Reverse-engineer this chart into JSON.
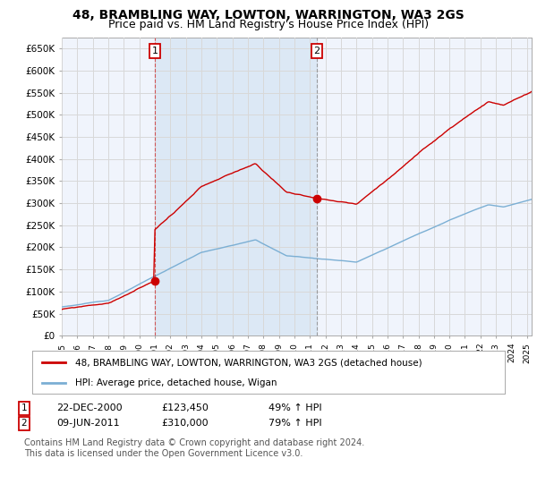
{
  "title": "48, BRAMBLING WAY, LOWTON, WARRINGTON, WA3 2GS",
  "subtitle": "Price paid vs. HM Land Registry's House Price Index (HPI)",
  "title_fontsize": 10,
  "subtitle_fontsize": 9,
  "background_color": "#ffffff",
  "plot_bg_color": "#f0f4fc",
  "shade_color": "#dce8f5",
  "grid_color": "#d8d8d8",
  "hpi_color": "#7bafd4",
  "property_color": "#cc0000",
  "property_label": "48, BRAMBLING WAY, LOWTON, WARRINGTON, WA3 2GS (detached house)",
  "hpi_label": "HPI: Average price, detached house, Wigan",
  "sale1_date": "22-DEC-2000",
  "sale1_price": 123450,
  "sale1_hpi_text": "49% ↑ HPI",
  "sale1_x": 2001.0,
  "sale2_date": "09-JUN-2011",
  "sale2_price": 310000,
  "sale2_hpi_text": "79% ↑ HPI",
  "sale2_x": 2011.44,
  "ylim": [
    0,
    675000
  ],
  "xlim": [
    1995,
    2025.3
  ],
  "yticks": [
    0,
    50000,
    100000,
    150000,
    200000,
    250000,
    300000,
    350000,
    400000,
    450000,
    500000,
    550000,
    600000,
    650000
  ],
  "ytick_labels": [
    "£0",
    "£50K",
    "£100K",
    "£150K",
    "£200K",
    "£250K",
    "£300K",
    "£350K",
    "£400K",
    "£450K",
    "£500K",
    "£550K",
    "£600K",
    "£650K"
  ],
  "footnote": "Contains HM Land Registry data © Crown copyright and database right 2024.\nThis data is licensed under the Open Government Licence v3.0.",
  "footnote_fontsize": 7,
  "legend_fontsize": 8
}
